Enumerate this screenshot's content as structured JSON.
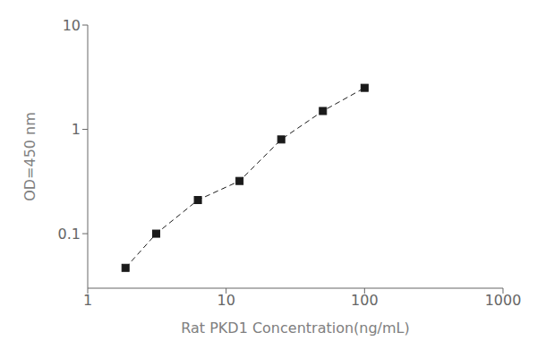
{
  "chart_data": {
    "type": "line",
    "xlabel": "Rat PKD1 Concentration(ng/mL)",
    "ylabel": "OD=450 nm",
    "x": [
      1.875,
      3.125,
      6.25,
      12.5,
      25,
      50,
      100
    ],
    "values": [
      0.047,
      0.1,
      0.21,
      0.32,
      0.8,
      1.5,
      2.5
    ],
    "xlim": [
      1,
      1000
    ],
    "ylim": [
      0.03,
      10
    ],
    "xticks": [
      1,
      10,
      100,
      1000
    ],
    "yticks": [
      0.1,
      1,
      10
    ],
    "log": true,
    "grid": false,
    "color": "#1a1a1a",
    "marker": "square",
    "line_style": "dashed"
  }
}
